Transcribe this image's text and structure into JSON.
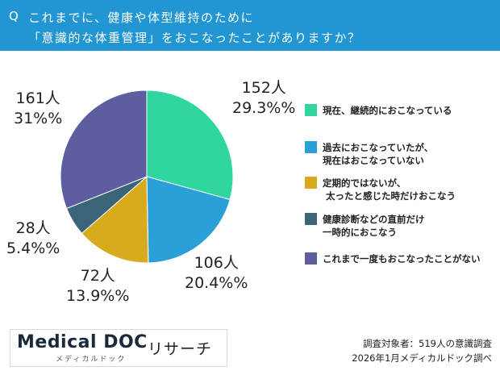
{
  "question": {
    "prefix": "Q",
    "line1": "これまでに、健康や体型維持のために",
    "line2": "「意識的な体重管理」をおこなったことがありますか？"
  },
  "colors": {
    "header": "#2196d3",
    "header_text": "#ffffff"
  },
  "chart_data": {
    "type": "pie",
    "start_angle": "12 o'clock, clockwise",
    "slices": [
      {
        "legend": "現在、継続的におこなっている",
        "count_label": "152人",
        "pct_label": "29.3%%",
        "value": 152,
        "percent": 29.3,
        "color": "#2fd6a1",
        "icon": "teal-square"
      },
      {
        "legend": "過去におこなっていたが、\n現在はおこなっていない",
        "count_label": "106人",
        "pct_label": "20.4%%",
        "value": 106,
        "percent": 20.4,
        "color": "#2a9fd8",
        "icon": "blue-square"
      },
      {
        "legend": "定期的ではないが、\n太ったと感じた時だけおこなう",
        "count_label": "72人",
        "pct_label": "13.9%%",
        "value": 72,
        "percent": 13.9,
        "color": "#d8ab1f",
        "icon": "gold-square"
      },
      {
        "legend": "健康診断などの直前だけ\n一時的におこなう",
        "count_label": "28人",
        "pct_label": "5.4%%",
        "value": 28,
        "percent": 5.4,
        "color": "#3b6478",
        "icon": "slate-square"
      },
      {
        "legend": "これまで一度もおこなったことがない",
        "count_label": "161人",
        "pct_label": "31%%",
        "value": 161,
        "percent": 31,
        "color": "#5d5ea0",
        "icon": "purple-square"
      }
    ],
    "legend_position": "right"
  },
  "brand": {
    "logo": "Medical DOC",
    "sub": "メディカルドック",
    "suffix": "リサーチ"
  },
  "source": {
    "line1": "調査対象者：519人の意識調査",
    "line2": "2026年1月メディカルドック調べ"
  }
}
